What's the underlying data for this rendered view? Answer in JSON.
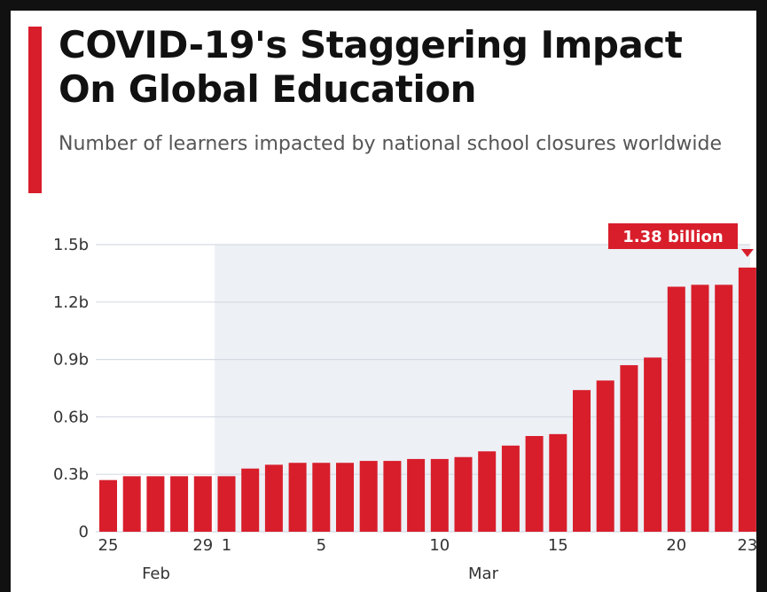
{
  "chart_data": {
    "type": "bar",
    "title": "COVID-19's Staggering Impact On Global Education",
    "subtitle": "Number of learners impacted by national school closures worldwide",
    "xlabel": "",
    "ylabel": "",
    "unit": "billion learners",
    "ylim": [
      0,
      1.5
    ],
    "y_ticks": [
      {
        "value": 0,
        "label": "0"
      },
      {
        "value": 0.3,
        "label": "0.3b"
      },
      {
        "value": 0.6,
        "label": "0.6b"
      },
      {
        "value": 0.9,
        "label": "0.9b"
      },
      {
        "value": 1.2,
        "label": "1.2b"
      },
      {
        "value": 1.5,
        "label": "1.5b"
      }
    ],
    "categories": [
      "Feb 25",
      "Feb 26",
      "Feb 27",
      "Feb 28",
      "Feb 29",
      "Mar 1",
      "Mar 2",
      "Mar 3",
      "Mar 4",
      "Mar 5",
      "Mar 6",
      "Mar 7",
      "Mar 8",
      "Mar 9",
      "Mar 10",
      "Mar 11",
      "Mar 12",
      "Mar 13",
      "Mar 14",
      "Mar 15",
      "Mar 16",
      "Mar 17",
      "Mar 18",
      "Mar 19",
      "Mar 20",
      "Mar 21",
      "Mar 22",
      "Mar 23"
    ],
    "values": [
      0.27,
      0.29,
      0.29,
      0.29,
      0.29,
      0.29,
      0.33,
      0.35,
      0.36,
      0.36,
      0.36,
      0.37,
      0.37,
      0.38,
      0.38,
      0.39,
      0.42,
      0.45,
      0.5,
      0.51,
      0.74,
      0.79,
      0.87,
      0.91,
      1.28,
      1.29,
      1.29,
      1.38
    ],
    "x_tick_labels": [
      {
        "index": 0,
        "label": "25"
      },
      {
        "index": 4,
        "label": "29"
      },
      {
        "index": 5,
        "label": "1"
      },
      {
        "index": 9,
        "label": "5"
      },
      {
        "index": 14,
        "label": "10"
      },
      {
        "index": 19,
        "label": "15"
      },
      {
        "index": 24,
        "label": "20"
      },
      {
        "index": 27,
        "label": "23"
      }
    ],
    "month_labels": [
      {
        "label": "Feb",
        "from_index": 0,
        "to_index": 4
      },
      {
        "label": "Mar",
        "from_index": 5,
        "to_index": 27
      }
    ],
    "shaded_region_start_index": 5,
    "annotation": {
      "index": 27,
      "label": "1.38 billion"
    },
    "grid": true,
    "colors": {
      "bar": "#d81e2b",
      "accent": "#d81e2b",
      "shade": "#edf0f5",
      "grid": "#d6dbe3"
    }
  }
}
